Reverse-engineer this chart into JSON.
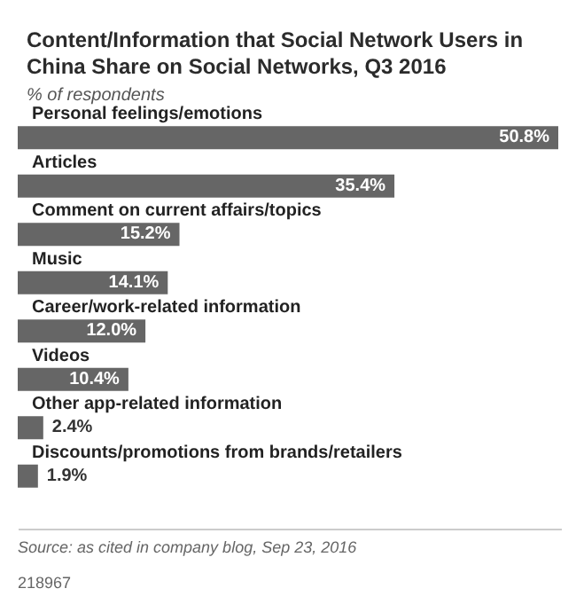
{
  "chart_data": {
    "type": "bar",
    "orientation": "horizontal",
    "title": "Content/Information that Social Network Users in China Share on Social Networks, Q3 2016",
    "subtitle": "% of respondents",
    "categories": [
      "Personal feelings/emotions",
      "Articles",
      "Comment on current affairs/topics",
      "Music",
      "Career/work-related information",
      "Videos",
      "Other app-related information",
      "Discounts/promotions from brands/retailers"
    ],
    "values": [
      50.8,
      35.4,
      15.2,
      14.1,
      12.0,
      10.4,
      2.4,
      1.9
    ],
    "value_labels": [
      "50.8%",
      "35.4%",
      "15.2%",
      "14.1%",
      "12.0%",
      "10.4%",
      "2.4%",
      "1.9%"
    ],
    "color": "#666666",
    "annotations": [
      "Source: as cited in company blog, Sep 23, 2016",
      "218967"
    ]
  }
}
